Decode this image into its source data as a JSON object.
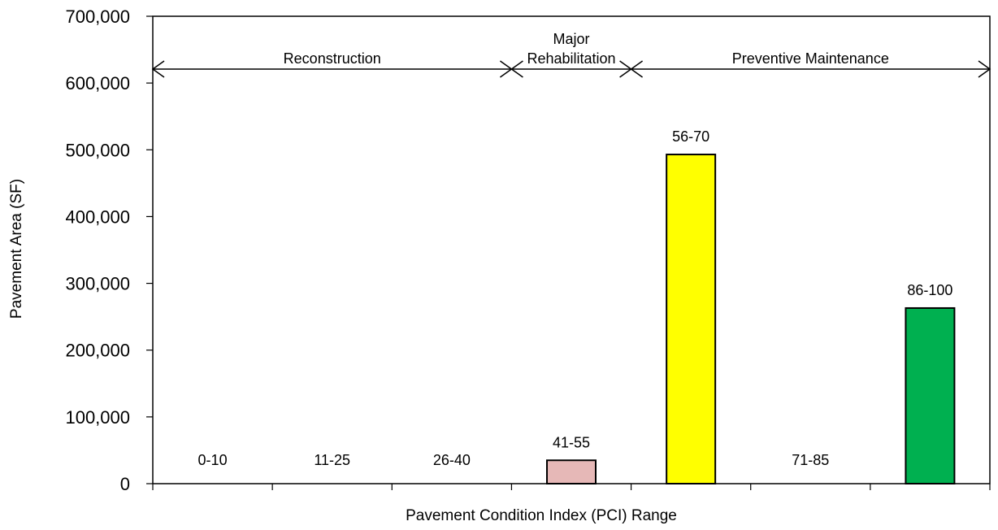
{
  "chart_data": {
    "type": "bar",
    "title": "",
    "xlabel": "Pavement Condition Index (PCI) Range",
    "ylabel": "Pavement  Area (SF)",
    "ylim": [
      0,
      700000
    ],
    "yticks": [
      "0",
      "100,000",
      "200,000",
      "300,000",
      "400,000",
      "500,000",
      "600,000",
      "700,000"
    ],
    "grid": false,
    "categories": [
      "0-10",
      "11-25",
      "26-40",
      "41-55",
      "56-70",
      "71-85",
      "86-100"
    ],
    "values": [
      0,
      0,
      0,
      35000,
      493000,
      0,
      263000
    ],
    "bar_colors": [
      "#ffffff",
      "#ffffff",
      "#ffffff",
      "#e6b8b7",
      "#ffff00",
      "#ffffff",
      "#00b050"
    ],
    "zones": [
      {
        "label_lines": [
          "Reconstruction"
        ],
        "from_category": 0,
        "to_category": 2
      },
      {
        "label_lines": [
          "Major",
          "Rehabilitation"
        ],
        "from_category": 3,
        "to_category": 3
      },
      {
        "label_lines": [
          "Preventive Maintenance"
        ],
        "from_category": 4,
        "to_category": 6
      }
    ]
  }
}
